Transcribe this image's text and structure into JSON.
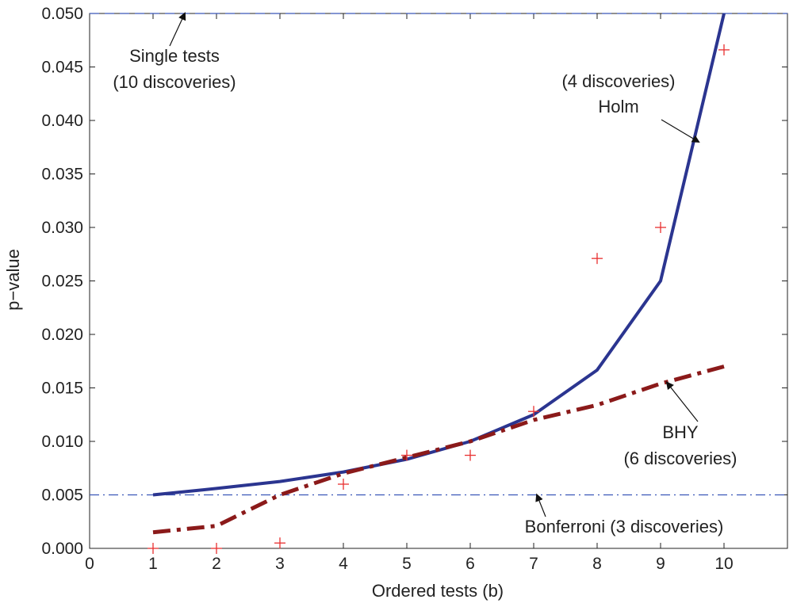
{
  "chart_data": {
    "type": "line",
    "xlabel": "Ordered tests (b)",
    "ylabel": "p−value",
    "xlim": [
      0,
      11
    ],
    "ylim": [
      0,
      0.05
    ],
    "xticks": [
      "0",
      "1",
      "2",
      "3",
      "4",
      "5",
      "6",
      "7",
      "8",
      "9",
      "10"
    ],
    "yticks": [
      "0.000",
      "0.005",
      "0.010",
      "0.015",
      "0.020",
      "0.025",
      "0.030",
      "0.035",
      "0.040",
      "0.045",
      "0.050"
    ],
    "grid": false,
    "series": [
      {
        "kind": "line",
        "style": "solid",
        "color": "#2b3590",
        "x": [
          1,
          2,
          3,
          4,
          5,
          6,
          7,
          8,
          9,
          10
        ],
        "values": [
          0.005,
          0.0056,
          0.00625,
          0.00714,
          0.00833,
          0.01,
          0.0125,
          0.01667,
          0.025,
          0.05
        ]
      },
      {
        "kind": "line",
        "style": "dashdot",
        "color": "#8b1a1a",
        "x": [
          1,
          2,
          3,
          4,
          5,
          6,
          7,
          8,
          9,
          10
        ],
        "values": [
          0.0015,
          0.0021,
          0.005,
          0.007,
          0.0085,
          0.01,
          0.012,
          0.0134,
          0.0154,
          0.017
        ]
      },
      {
        "kind": "scatter",
        "marker": "+",
        "color": "#e83030",
        "x": [
          1,
          2,
          3,
          4,
          5,
          6,
          7,
          8,
          9,
          10
        ],
        "values": [
          0.0,
          0.0,
          0.0005,
          0.006,
          0.0087,
          0.0087,
          0.0128,
          0.0271,
          0.03,
          0.0466
        ]
      }
    ],
    "reference_lines": [
      {
        "y": 0.05,
        "style": "dashed",
        "color": "#3a56b8"
      },
      {
        "y": 0.005,
        "style": "dashdot",
        "color": "#3a56b8"
      }
    ],
    "annotations": {
      "single_tests": {
        "lines": [
          "Single tests",
          "(10 discoveries)"
        ],
        "arrow_to": [
          1.5,
          0.05
        ]
      },
      "holm": {
        "lines": [
          "(4 discoveries)",
          "Holm"
        ],
        "arrow_to": [
          9.6,
          0.038
        ]
      },
      "bhy": {
        "lines": [
          "BHY",
          "(6 discoveries)"
        ],
        "arrow_to": [
          9.1,
          0.0155
        ]
      },
      "bonferroni": {
        "lines": [
          "Bonferroni (3 discoveries)"
        ],
        "arrow_to": [
          7.05,
          0.005
        ]
      }
    }
  }
}
